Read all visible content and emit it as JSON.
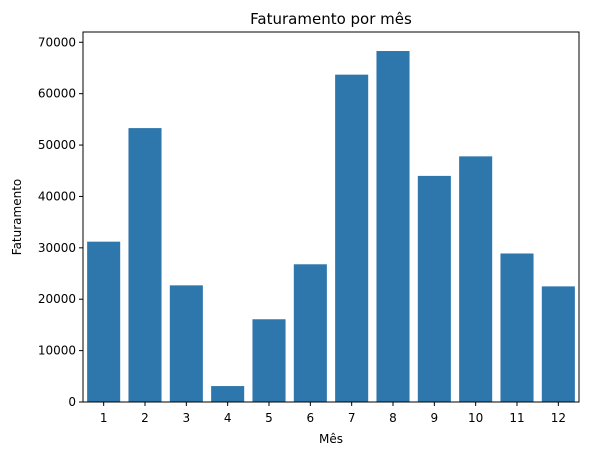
{
  "chart_data": {
    "type": "bar",
    "title": "Faturamento por mês",
    "xlabel": "Mês",
    "ylabel": "Faturamento",
    "categories": [
      "1",
      "2",
      "3",
      "4",
      "5",
      "6",
      "7",
      "8",
      "9",
      "10",
      "11",
      "12"
    ],
    "values": [
      31200,
      53300,
      22700,
      3100,
      16100,
      26800,
      63700,
      68300,
      44000,
      47800,
      28900,
      22500
    ],
    "ylim": [
      0,
      72000
    ],
    "yticks": [
      0,
      10000,
      20000,
      30000,
      40000,
      50000,
      60000,
      70000
    ],
    "grid": false,
    "bar_color": "#2e77ad"
  }
}
